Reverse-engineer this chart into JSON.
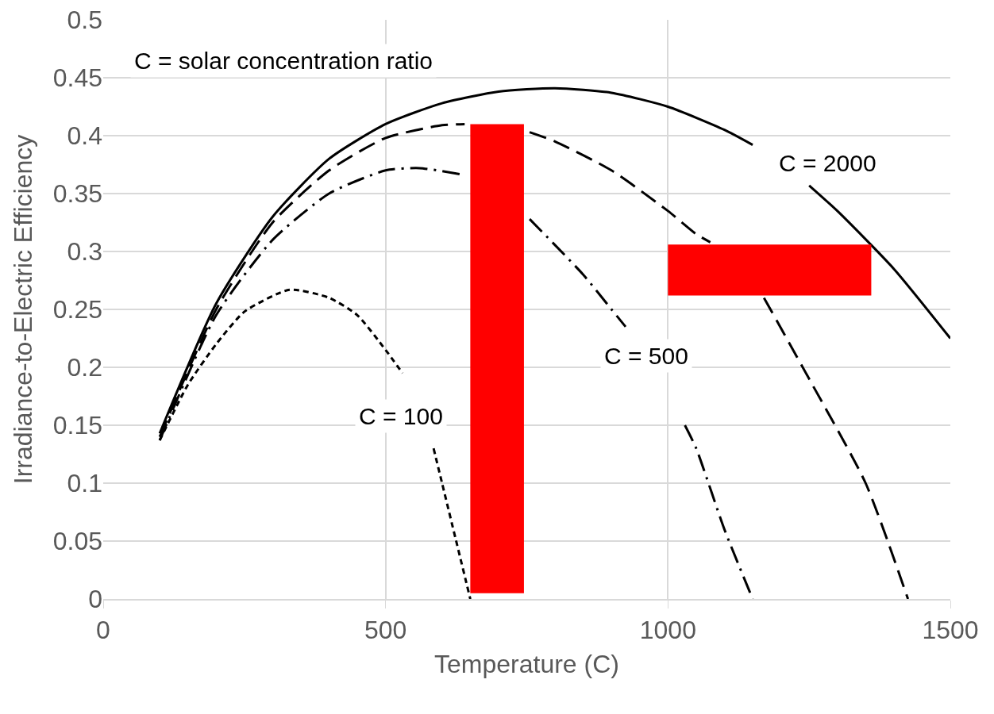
{
  "chart_data": {
    "type": "line",
    "xlabel": "Temperature (C)",
    "ylabel": "Irradiance-to-Electric Efficiency",
    "xlim": [
      0,
      1500
    ],
    "xticks": [
      0,
      500,
      1000,
      1500
    ],
    "ylim": [
      0,
      0.5
    ],
    "yticks": [
      0,
      0.05,
      0.1,
      0.15,
      0.2,
      0.25,
      0.3,
      0.35,
      0.4,
      0.45,
      0.5
    ],
    "grid": true,
    "marker": "none",
    "series": [
      {
        "color": "#000000",
        "line_style": "solid",
        "x": [
          100,
          200,
          300,
          400,
          500,
          600,
          700,
          800,
          900,
          1000,
          1100,
          1150,
          1200,
          1250,
          1300,
          1400,
          1500
        ],
        "values": [
          0.143,
          0.255,
          0.33,
          0.38,
          0.41,
          0.428,
          0.438,
          0.441,
          0.437,
          0.425,
          0.405,
          0.392,
          null,
          0.357,
          0.335,
          0.285,
          0.225
        ]
      },
      {
        "color": "#000000",
        "line_style": "dashed",
        "x": [
          100,
          200,
          300,
          400,
          500,
          600,
          640,
          700,
          755,
          800,
          900,
          1000,
          1050,
          1075,
          1100,
          1170,
          1250,
          1350,
          1425
        ],
        "values": [
          0.14,
          0.25,
          0.325,
          0.37,
          0.398,
          0.409,
          0.41,
          null,
          0.403,
          0.395,
          0.37,
          0.335,
          0.315,
          0.308,
          null,
          0.26,
          0.19,
          0.1,
          0
        ]
      },
      {
        "color": "#000000",
        "line_style": "dashdot",
        "x": [
          100,
          200,
          300,
          400,
          500,
          560,
          640,
          700,
          755,
          850,
          900,
          925,
          950,
          1030,
          1050,
          1100,
          1150
        ],
        "values": [
          0.137,
          0.245,
          0.31,
          0.35,
          0.37,
          0.372,
          0.366,
          null,
          0.328,
          0.28,
          0.25,
          0.235,
          null,
          0.15,
          0.13,
          0.06,
          0
        ]
      },
      {
        "color": "#000000",
        "line_style": "dotted",
        "x": [
          100,
          150,
          200,
          250,
          330,
          400,
          450,
          500,
          530,
          550,
          585,
          600,
          650
        ],
        "values": [
          0.137,
          0.185,
          0.22,
          0.248,
          0.267,
          0.26,
          0.245,
          0.215,
          0.195,
          null,
          0.13,
          0.1,
          0
        ]
      },
      {
        "type": "area",
        "color": "#ff0000",
        "x": [
          650,
          745,
          745,
          650,
          650
        ],
        "values": [
          0.005,
          0.005,
          0.41,
          0.41,
          0.005
        ]
      },
      {
        "type": "area",
        "color": "#ff0000",
        "x": [
          1000,
          1360,
          1360,
          1000,
          1000
        ],
        "values": [
          0.262,
          0.262,
          0.306,
          0.306,
          0.262
        ]
      }
    ],
    "annotations": [
      "C = solar concentration ratio",
      "C = 2000",
      "C = 500",
      "C = 100"
    ]
  }
}
